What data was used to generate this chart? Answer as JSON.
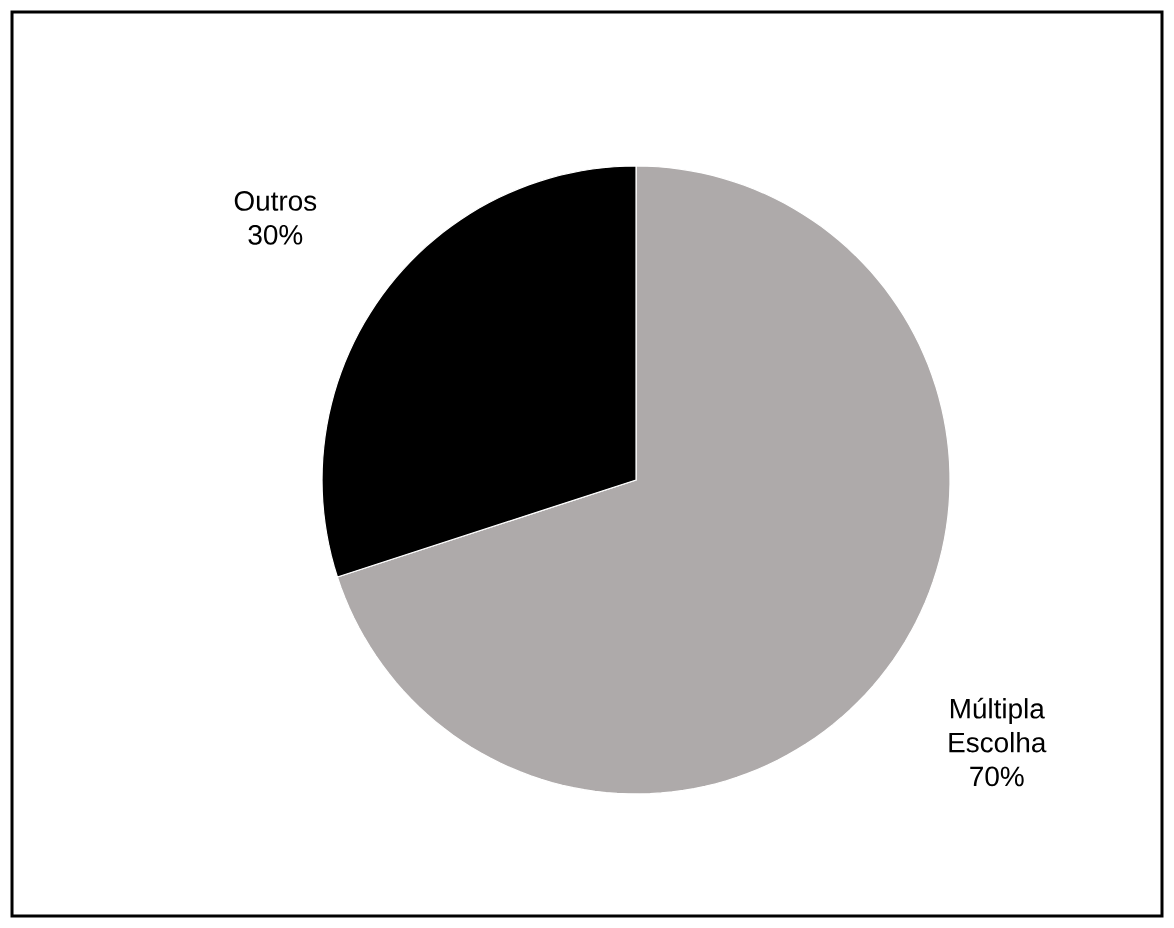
{
  "chart_data": {
    "type": "pie",
    "categories": [
      "Múltipla Escolha",
      "Outros"
    ],
    "values": [
      70,
      30
    ],
    "colors": [
      "#aeaaaa",
      "#000000"
    ],
    "value_labels": [
      "70%",
      "30%"
    ]
  }
}
